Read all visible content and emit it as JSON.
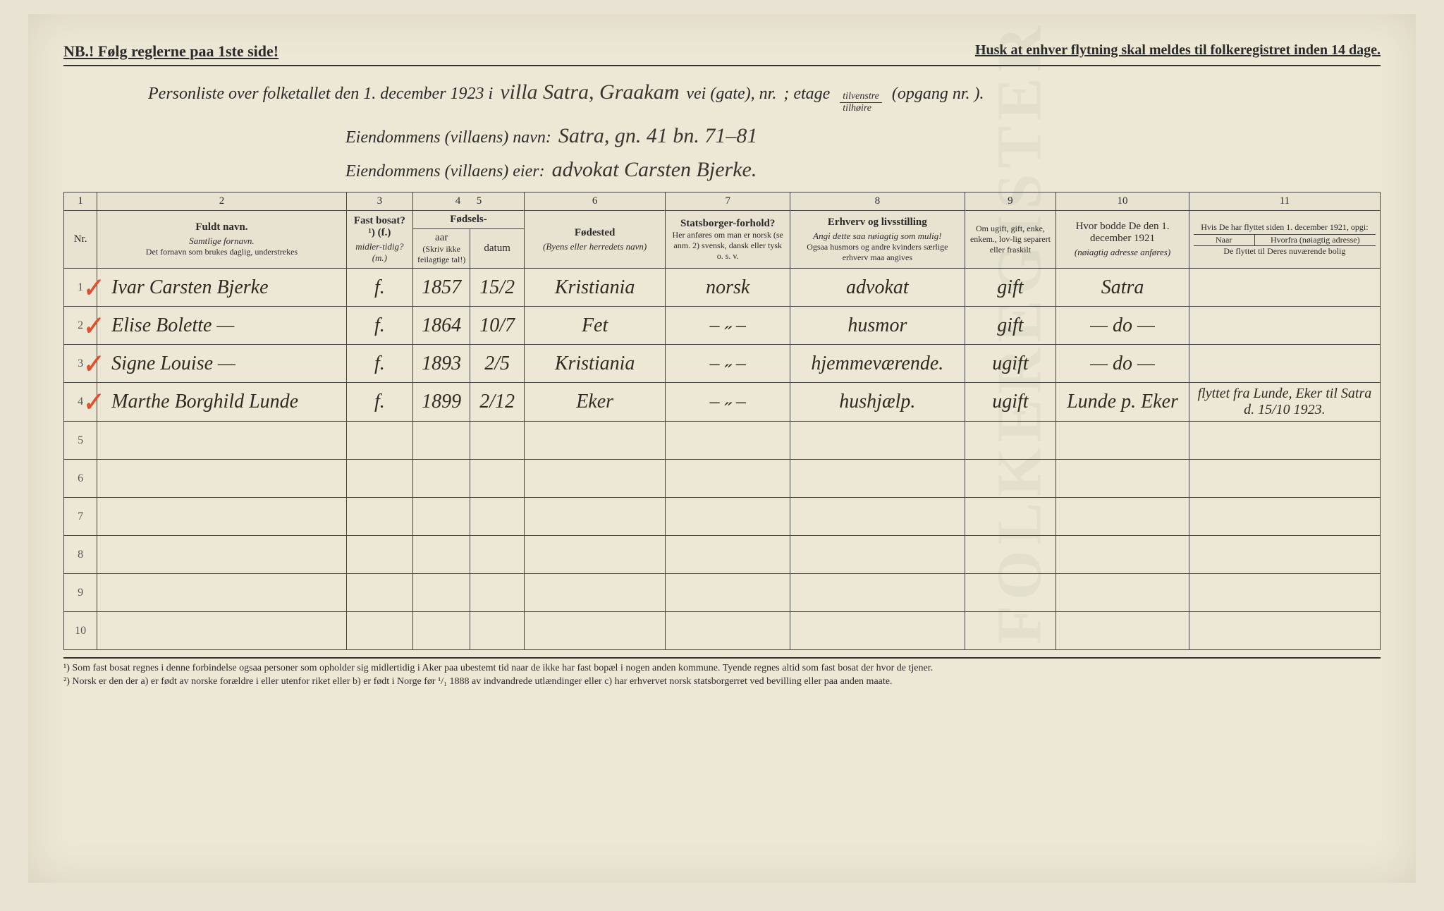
{
  "top": {
    "left": "NB.! Følg reglerne paa 1ste side!",
    "right": "Husk at enhver flytning skal meldes til folkeregistret inden 14 dage."
  },
  "header": {
    "line1_printed_a": "Personliste over folketallet den 1. december 1923 i",
    "line1_hand": "villa Satra, Graakam",
    "line1_printed_b": "vei (gate), nr.",
    "line1_printed_c": ";     etage",
    "frac_top": "tilvenstre",
    "frac_bot": "tilhøire",
    "line1_printed_d": "(opgang nr.    ).",
    "line2_printed": "Eiendommens (villaens) navn:",
    "line2_hand": "Satra, gn. 41 bn. 71–81",
    "line3_printed": "Eiendommens (villaens) eier:",
    "line3_hand": "advokat Carsten Bjerke."
  },
  "columns": {
    "nums": [
      "1",
      "2",
      "3",
      "4",
      "5",
      "6",
      "7",
      "8",
      "9",
      "10",
      "11"
    ],
    "h_nr": "Nr.",
    "h_name": "Fuldt navn.",
    "h_name_sub1": "Samtlige fornavn.",
    "h_name_sub2": "Det fornavn som brukes daglig, understrekes",
    "h_fast": "Fast bosat? ¹) (f.)",
    "h_fast_sub": "midler-tidig? (m.)",
    "h_fod": "Fødsels-",
    "h_aar": "aar",
    "h_datum": "datum",
    "h_fod_sub": "(Skriv ikke feilagtige tal!)",
    "h_sted": "Fødested",
    "h_sted_sub": "(Byens eller herredets navn)",
    "h_stats": "Statsborger-forhold?",
    "h_stats_sub": "Her anføres om man er norsk (se anm. 2) svensk, dansk eller tysk o. s. v.",
    "h_erhv": "Erhverv og livsstilling",
    "h_erhv_sub1": "Angi dette saa nøiagtig som mulig!",
    "h_erhv_sub2": "Ogsaa husmors og andre kvinders særlige erhverv maa angives",
    "h_gift": "Om ugift, gift, enke, enkem., lov-lig separert eller fraskilt",
    "h_1921": "Hvor bodde De den 1. december 1921",
    "h_1921_sub": "(nøiagtig adresse anføres)",
    "h_11": "Hvis De har flyttet siden 1. december 1921, opgi:",
    "h_11a": "Naar",
    "h_11b": "Hvorfra (nøiagtig adresse)",
    "h_11c": "De flyttet til Deres nuværende bolig"
  },
  "rows": [
    {
      "nr": "1",
      "name": "Ivar Carsten Bjerke",
      "fm": "f.",
      "aar": "1857",
      "dat": "15/2",
      "sted": "Kristiania",
      "stats": "norsk",
      "erhv": "advokat",
      "gift": "gift",
      "a1921": "Satra",
      "a11": ""
    },
    {
      "nr": "2",
      "name": "Elise Bolette    —",
      "fm": "f.",
      "aar": "1864",
      "dat": "10/7",
      "sted": "Fet",
      "stats": "– ˶ –",
      "erhv": "husmor",
      "gift": "gift",
      "a1921": "— do —",
      "a11": ""
    },
    {
      "nr": "3",
      "name": "Signe Louise    —",
      "fm": "f.",
      "aar": "1893",
      "dat": "2/5",
      "sted": "Kristiania",
      "stats": "– ˶ –",
      "erhv": "hjemmeværende.",
      "gift": "ugift",
      "a1921": "— do —",
      "a11": ""
    },
    {
      "nr": "4",
      "name": "Marthe Borghild Lunde",
      "fm": "f.",
      "aar": "1899",
      "dat": "2/12",
      "sted": "Eker",
      "stats": "– ˶ –",
      "erhv": "hushjælp.",
      "gift": "ugift",
      "a1921": "Lunde p. Eker",
      "a11": "flyttet fra Lunde, Eker til Satra d. 15/10 1923."
    }
  ],
  "empty_rows": [
    "5",
    "6",
    "7",
    "8",
    "9",
    "10"
  ],
  "footnotes": {
    "f1": "¹) Som fast bosat regnes i denne forbindelse ogsaa personer som opholder sig midlertidig i Aker paa ubestemt tid naar de ikke har fast bopæl i nogen anden kommune. Tyende regnes altid som fast bosat der hvor de tjener.",
    "f2": "²) Norsk er den der a) er født av norske forældre i eller utenfor riket eller b) er født i Norge før ¹/₁ 1888 av indvandrede utlændinger eller c) har erhvervet norsk statsborgerret ved bevilling eller paa anden maate."
  },
  "watermark": "FOLKEREGISTER"
}
